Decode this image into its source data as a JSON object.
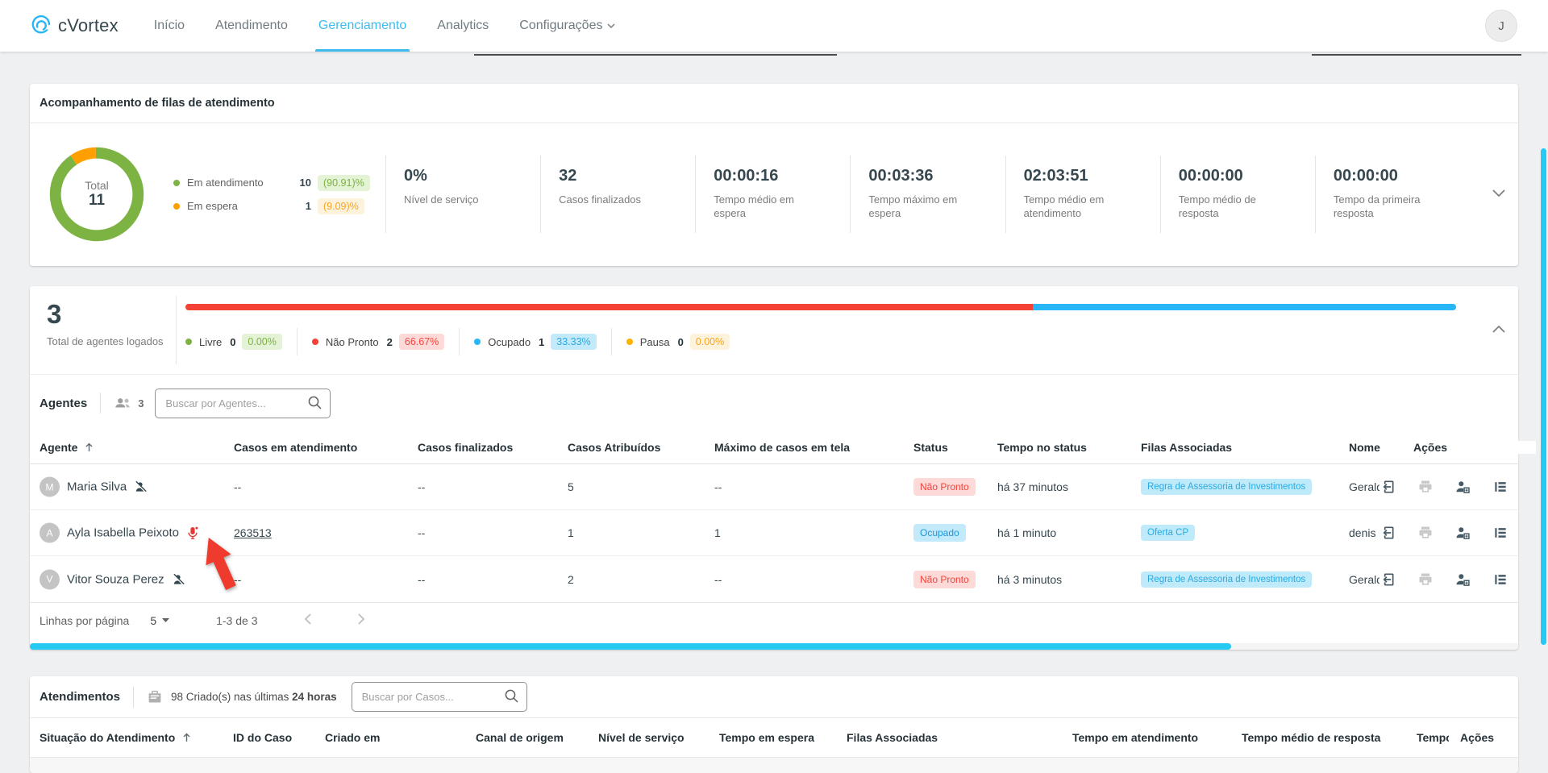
{
  "nav": {
    "brand": "cVortex",
    "items": [
      {
        "label": "Início"
      },
      {
        "label": "Atendimento"
      },
      {
        "label": "Gerenciamento"
      },
      {
        "label": "Analytics"
      },
      {
        "label": "Configurações"
      }
    ],
    "avatar_initial": "J"
  },
  "queue_card": {
    "title": "Acompanhamento de filas de atendimento",
    "donut": {
      "center_label": "Total",
      "total": "11",
      "segments": [
        {
          "label": "Em atendimento",
          "value": "10",
          "percent": "(90.91)%",
          "color": "#7cb342"
        },
        {
          "label": "Em espera",
          "value": "1",
          "percent": "(9.09)%",
          "color": "#ffa000"
        }
      ]
    },
    "stats": [
      {
        "value": "0%",
        "label": "Nível de serviço"
      },
      {
        "value": "32",
        "label": "Casos finalizados"
      },
      {
        "value": "00:00:16",
        "label": "Tempo médio em espera"
      },
      {
        "value": "00:03:36",
        "label": "Tempo máximo em espera"
      },
      {
        "value": "02:03:51",
        "label": "Tempo médio em atendimento"
      },
      {
        "value": "00:00:00",
        "label": "Tempo médio de resposta"
      },
      {
        "value": "00:00:00",
        "label": "Tempo da primeira resposta"
      }
    ]
  },
  "agents_card": {
    "total": "3",
    "total_label": "Total de agentes logados",
    "bar": [
      {
        "color": "#f44336",
        "percent": 66.67
      },
      {
        "color": "#29b6f6",
        "percent": 33.33
      }
    ],
    "legend": [
      {
        "label": "Livre",
        "count": "0",
        "percent": "0.00%",
        "dot": "#7cb342",
        "style": "pb-green"
      },
      {
        "label": "Não Pronto",
        "count": "2",
        "percent": "66.67%",
        "dot": "#f44336",
        "style": "pb-red"
      },
      {
        "label": "Ocupado",
        "count": "1",
        "percent": "33.33%",
        "dot": "#29b6f6",
        "style": "pb-blue"
      },
      {
        "label": "Pausa",
        "count": "0",
        "percent": "0.00%",
        "dot": "#ffb300",
        "style": "pb-orange"
      }
    ],
    "section_title": "Agentes",
    "agent_count": "3",
    "search_placeholder": "Buscar por Agentes...",
    "columns": [
      "Agente",
      "Casos em atendimento",
      "Casos finalizados",
      "Casos Atribuídos",
      "Máximo de casos em tela",
      "Status",
      "Tempo no status",
      "Filas Associadas",
      "Nome",
      "Ações"
    ],
    "rows": [
      {
        "avatar": "M",
        "name": "Maria Silva",
        "casos_em_atendimento": "--",
        "casos_finalizados": "--",
        "casos_atribuidos": "5",
        "max_casos": "--",
        "status": "Não Pronto",
        "tempo_status": "há 37 minutos",
        "fila": "Regra de Assessoria de Investimentos",
        "nome": "Geraldo"
      },
      {
        "avatar": "A",
        "name": "Ayla Isabella Peixoto",
        "casos_em_atendimento": "263513",
        "casos_finalizados": "--",
        "casos_atribuidos": "1",
        "max_casos": "1",
        "status": "Ocupado",
        "tempo_status": "há 1 minuto",
        "fila": "Oferta CP",
        "nome": "denis n"
      },
      {
        "avatar": "V",
        "name": "Vitor Souza Perez",
        "casos_em_atendimento": "--",
        "casos_finalizados": "--",
        "casos_atribuidos": "2",
        "max_casos": "--",
        "status": "Não Pronto",
        "tempo_status": "há 3 minutos",
        "fila": "Regra de Assessoria de Investimentos",
        "nome": "Geraldo"
      }
    ],
    "pagination": {
      "rows_per_page_label": "Linhas por página",
      "rows_per_page": "5",
      "range": "1-3 de 3"
    }
  },
  "cases_card": {
    "title": "Atendimentos",
    "created_prefix": "98 Criado(s) nas últimas",
    "created_bold": "24 horas",
    "search_placeholder": "Buscar por Casos...",
    "columns": [
      "Situação do Atendimento",
      "ID do Caso",
      "Criado em",
      "Canal de origem",
      "Nível de serviço",
      "Tempo em espera",
      "Filas Associadas",
      "Tempo em atendimento",
      "Tempo médio de resposta",
      "Tempo",
      "Ações"
    ]
  },
  "annotation": {
    "shape": "arrow-up-left",
    "color": "#ef3b2d"
  },
  "colors": {
    "accent_cyan": "#29b6f6",
    "scrollbar_cyan": "#26c9f1",
    "green": "#7cb342",
    "orange": "#ffa000",
    "red": "#f44336"
  }
}
